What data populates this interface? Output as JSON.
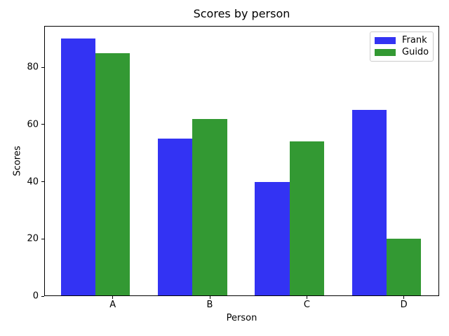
{
  "chart_data": {
    "type": "bar",
    "title": "Scores by person",
    "xlabel": "Person",
    "ylabel": "Scores",
    "categories": [
      "A",
      "B",
      "C",
      "D"
    ],
    "series": [
      {
        "name": "Frank",
        "color": "#3333f3",
        "values": [
          90,
          55,
          40,
          65
        ]
      },
      {
        "name": "Guido",
        "color": "#339933",
        "values": [
          85,
          62,
          54,
          20
        ]
      }
    ],
    "ylim": [
      0,
      94.5
    ],
    "yticks": [
      0,
      20,
      40,
      60,
      80
    ],
    "grid": false,
    "legend_position": "upper right"
  }
}
